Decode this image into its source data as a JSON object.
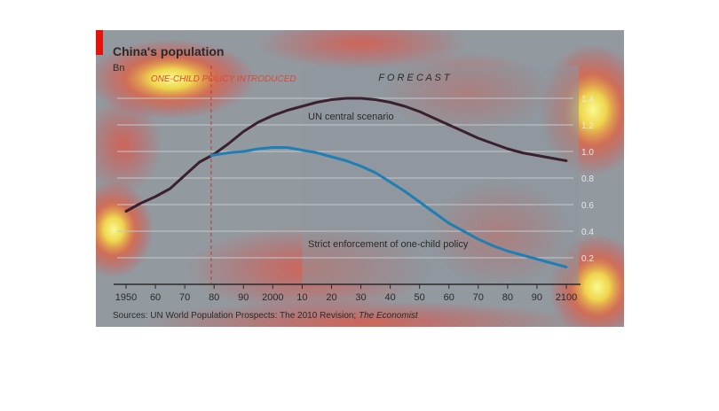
{
  "chart_data": {
    "type": "line",
    "title": "China's population",
    "ylabel": "Bn",
    "x_tick_labels": [
      "1950",
      "60",
      "70",
      "80",
      "90",
      "2000",
      "10",
      "20",
      "30",
      "40",
      "50",
      "60",
      "70",
      "80",
      "90",
      "2100"
    ],
    "x_ticks": [
      1950,
      1960,
      1970,
      1980,
      1990,
      2000,
      2010,
      2020,
      2030,
      2040,
      2050,
      2060,
      2070,
      2080,
      2090,
      2100
    ],
    "xlim": [
      1950,
      2100
    ],
    "ylim": [
      0,
      1.6
    ],
    "y_ticks": [
      0.2,
      0.4,
      0.6,
      0.8,
      1.0,
      1.2,
      1.4
    ],
    "y_tick_labels": [
      "0.2",
      "0.4",
      "0.6",
      "0.8",
      "1.0",
      "1.2",
      "1.4"
    ],
    "grid": true,
    "series": [
      {
        "name": "UN central scenario",
        "color": "#3b2130",
        "x": [
          1950,
          1955,
          1960,
          1965,
          1970,
          1975,
          1980,
          1985,
          1990,
          1995,
          2000,
          2005,
          2010,
          2015,
          2020,
          2025,
          2030,
          2035,
          2040,
          2045,
          2050,
          2055,
          2060,
          2065,
          2070,
          2075,
          2080,
          2085,
          2090,
          2095,
          2100
        ],
        "y": [
          0.55,
          0.61,
          0.66,
          0.72,
          0.82,
          0.92,
          0.98,
          1.06,
          1.15,
          1.22,
          1.27,
          1.31,
          1.34,
          1.37,
          1.39,
          1.4,
          1.4,
          1.39,
          1.37,
          1.34,
          1.3,
          1.25,
          1.2,
          1.15,
          1.1,
          1.06,
          1.02,
          0.99,
          0.97,
          0.95,
          0.93
        ]
      },
      {
        "name": "Strict enforcement of one-child policy",
        "color": "#1f7fb5",
        "x": [
          1979,
          1985,
          1990,
          1995,
          2000,
          2005,
          2010,
          2015,
          2020,
          2025,
          2030,
          2035,
          2040,
          2045,
          2050,
          2055,
          2060,
          2065,
          2070,
          2075,
          2080,
          2085,
          2090,
          2095,
          2100
        ],
        "y": [
          0.97,
          0.99,
          1.0,
          1.02,
          1.03,
          1.03,
          1.01,
          0.99,
          0.96,
          0.93,
          0.89,
          0.84,
          0.77,
          0.7,
          0.62,
          0.54,
          0.46,
          0.4,
          0.34,
          0.29,
          0.25,
          0.22,
          0.19,
          0.16,
          0.13
        ]
      }
    ],
    "annotations": {
      "policy_label": "ONE-CHILD POLICY INTRODUCED",
      "policy_year": 1979,
      "forecast_label": "F O R E C A S T",
      "forecast_start": 2010,
      "un_label": "UN central scenario",
      "strict_label": "Strict enforcement of one-child policy"
    },
    "source_prefix": "Sources: UN World Population Prospects: The 2010 Revision; ",
    "source_italic": "The Economist"
  },
  "colors": {
    "background": "#9aa1a6",
    "forecast_shade": "#8e969c",
    "accent_red": "#e3120b",
    "gridline": "#c4c9cc",
    "text": "#3a3a3a"
  }
}
